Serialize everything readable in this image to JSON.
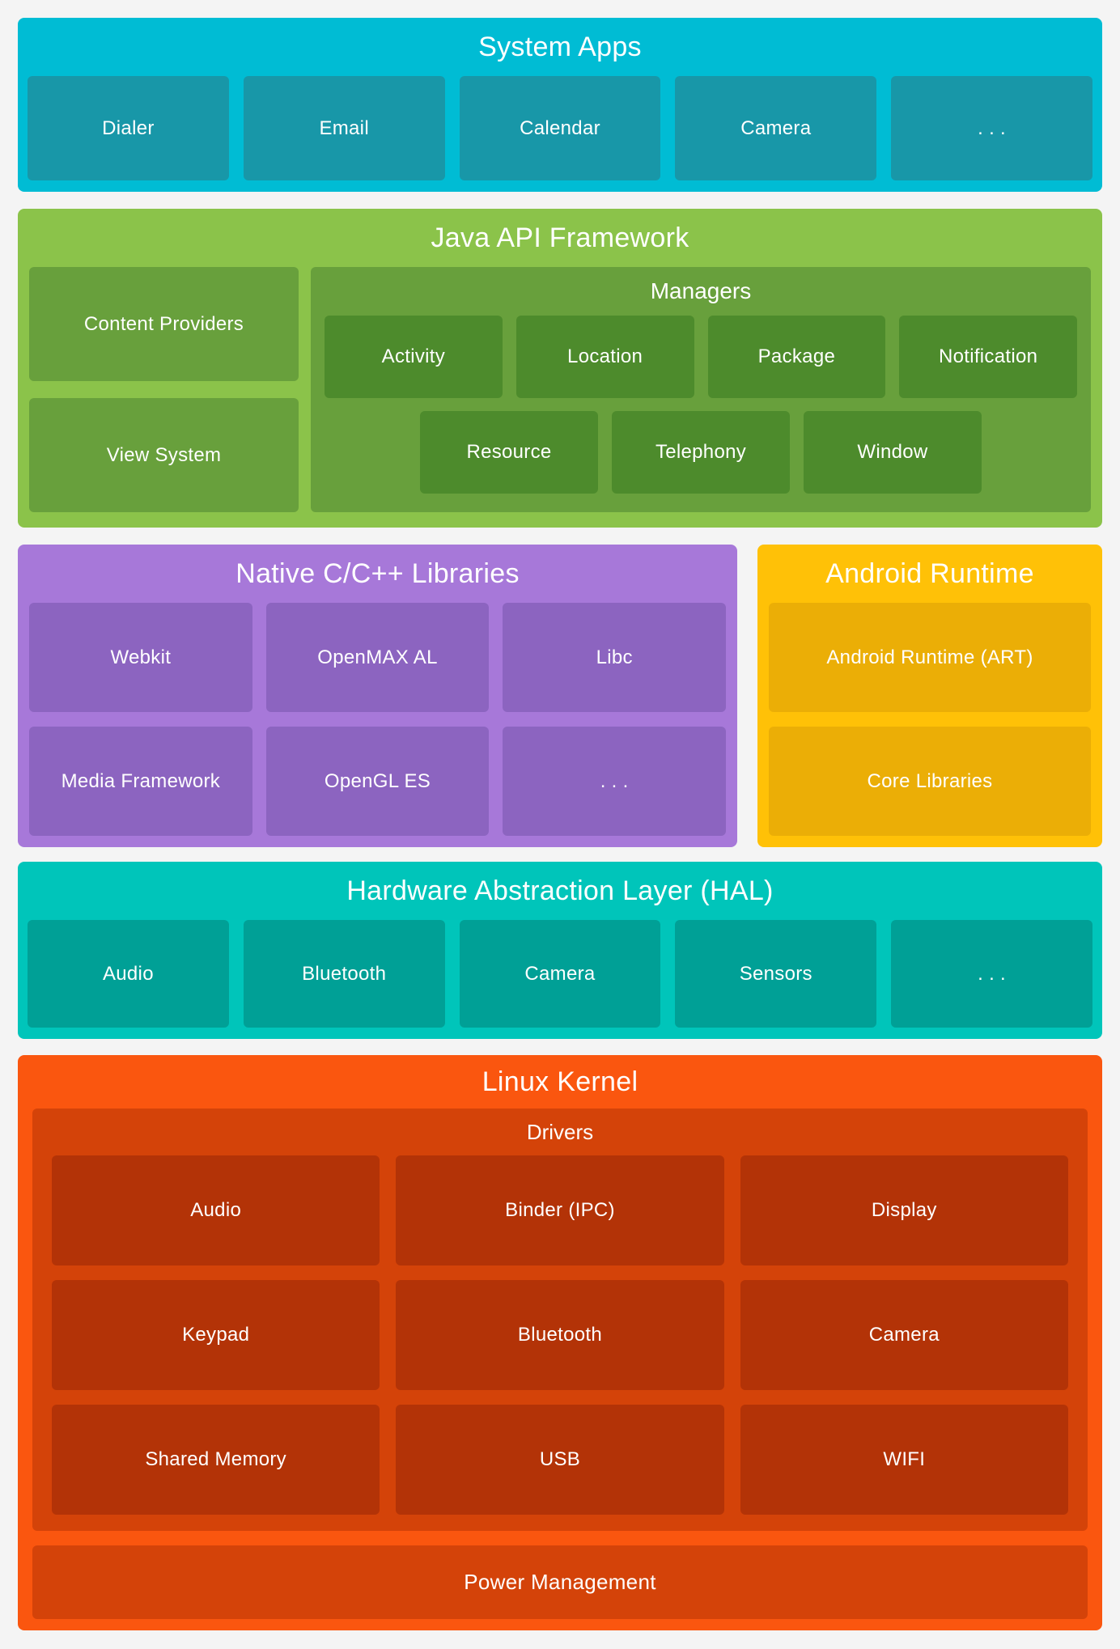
{
  "colors": {
    "page-bg": "#F4F4F4",
    "sysapps-bg": "#00BCD4",
    "sysapps-box": "#1897A8",
    "java-bg": "#8BC34A",
    "java-mid": "#68A03C",
    "java-dark": "#4D8B2C",
    "purple-bg": "#A778D9",
    "purple-box": "#8C64C0",
    "gold-bg": "#FFC107",
    "gold-box": "#EBAE06",
    "hal-bg": "#00C5BA",
    "hal-box": "#00A096",
    "linux-bg": "#FA560F",
    "linux-mid": "#D44309",
    "linux-box": "#B33307"
  },
  "system_apps": {
    "title": "System Apps",
    "items": [
      "Dialer",
      "Email",
      "Calendar",
      "Camera",
      ". . ."
    ]
  },
  "java_api": {
    "title": "Java API Framework",
    "left_items": [
      "Content Providers",
      "View System"
    ],
    "managers": {
      "title": "Managers",
      "row1": [
        "Activity",
        "Location",
        "Package",
        "Notification"
      ],
      "row2": [
        "Resource",
        "Telephony",
        "Window"
      ]
    }
  },
  "native_libs": {
    "title": "Native C/C++ Libraries",
    "row1": [
      "Webkit",
      "OpenMAX AL",
      "Libc"
    ],
    "row2": [
      "Media Framework",
      "OpenGL ES",
      ". . ."
    ]
  },
  "android_runtime": {
    "title": "Android Runtime",
    "items": [
      "Android Runtime (ART)",
      "Core Libraries"
    ]
  },
  "hal": {
    "title": "Hardware Abstraction Layer (HAL)",
    "items": [
      "Audio",
      "Bluetooth",
      "Camera",
      "Sensors",
      ". . ."
    ]
  },
  "linux_kernel": {
    "title": "Linux Kernel",
    "drivers": {
      "title": "Drivers",
      "row1": [
        "Audio",
        "Binder (IPC)",
        "Display"
      ],
      "row2": [
        "Keypad",
        "Bluetooth",
        "Camera"
      ],
      "row3": [
        "Shared Memory",
        "USB",
        "WIFI"
      ]
    },
    "power_management": "Power Management"
  }
}
